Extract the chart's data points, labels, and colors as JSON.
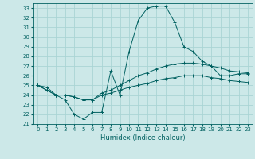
{
  "title": "",
  "xlabel": "Humidex (Indice chaleur)",
  "bg_color": "#cce8e8",
  "grid_color": "#aad4d4",
  "line_color": "#006060",
  "xlim": [
    -0.5,
    23.5
  ],
  "ylim": [
    21,
    33.5
  ],
  "yticks": [
    21,
    22,
    23,
    24,
    25,
    26,
    27,
    28,
    29,
    30,
    31,
    32,
    33
  ],
  "xticks": [
    0,
    1,
    2,
    3,
    4,
    5,
    6,
    7,
    8,
    9,
    10,
    11,
    12,
    13,
    14,
    15,
    16,
    17,
    18,
    19,
    20,
    21,
    22,
    23
  ],
  "series": [
    [
      25.0,
      24.8,
      24.0,
      23.5,
      22.0,
      21.5,
      22.2,
      22.2,
      26.5,
      24.0,
      28.5,
      31.7,
      33.0,
      33.2,
      33.2,
      31.5,
      29.0,
      28.5,
      27.5,
      27.0,
      26.0,
      26.0,
      26.2,
      26.2
    ],
    [
      25.0,
      24.5,
      24.0,
      24.0,
      23.8,
      23.5,
      23.5,
      24.2,
      24.5,
      25.0,
      25.5,
      26.0,
      26.3,
      26.7,
      27.0,
      27.2,
      27.3,
      27.3,
      27.2,
      27.0,
      26.8,
      26.5,
      26.4,
      26.3
    ],
    [
      25.0,
      24.5,
      24.0,
      24.0,
      23.8,
      23.5,
      23.5,
      24.0,
      24.2,
      24.5,
      24.8,
      25.0,
      25.2,
      25.5,
      25.7,
      25.8,
      26.0,
      26.0,
      26.0,
      25.8,
      25.7,
      25.5,
      25.4,
      25.3
    ]
  ]
}
